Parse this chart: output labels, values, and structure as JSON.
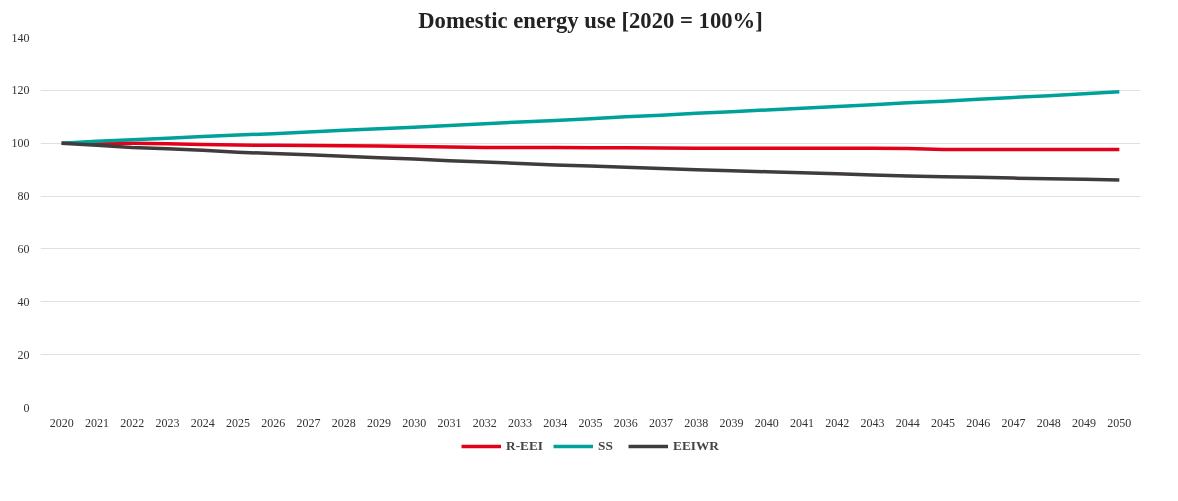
{
  "chart_data": {
    "type": "line",
    "title": "Domestic energy use [2020 = 100%]",
    "categories": [
      "2020",
      "2021",
      "2022",
      "2023",
      "2024",
      "2025",
      "2026",
      "2027",
      "2028",
      "2029",
      "2030",
      "2031",
      "2032",
      "2033",
      "2034",
      "2035",
      "2036",
      "2037",
      "2038",
      "2039",
      "2040",
      "2041",
      "2042",
      "2043",
      "2044",
      "2045",
      "2046",
      "2047",
      "2048",
      "2049",
      "2050"
    ],
    "series": [
      {
        "name": "R-EEI",
        "color": "#e3001b",
        "values": [
          100,
          100,
          100,
          99.8,
          99.5,
          99.3,
          99.2,
          99.1,
          99,
          98.9,
          98.8,
          98.6,
          98.4,
          98.4,
          98.4,
          98.3,
          98.3,
          98.2,
          98.1,
          98.1,
          98.1,
          98.1,
          98.1,
          98.1,
          98,
          97.6,
          97.6,
          97.6,
          97.6,
          97.6,
          97.6
        ]
      },
      {
        "name": "SS",
        "color": "#00a19a",
        "values": [
          100,
          100.7,
          101.3,
          101.9,
          102.5,
          103.1,
          103.6,
          104.2,
          104.9,
          105.5,
          106,
          106.7,
          107.4,
          108,
          108.6,
          109.3,
          110,
          110.6,
          111.3,
          111.9,
          112.6,
          113.2,
          113.9,
          114.6,
          115.3,
          115.9,
          116.6,
          117.3,
          118,
          118.7,
          119.5
        ]
      },
      {
        "name": "EEIWR",
        "color": "#403c3c",
        "values": [
          100,
          99.2,
          98.4,
          97.9,
          97.3,
          96.6,
          96.1,
          95.6,
          95.1,
          94.5,
          94,
          93.4,
          92.9,
          92.3,
          91.8,
          91.4,
          90.9,
          90.4,
          90,
          89.6,
          89.2,
          88.8,
          88.4,
          88,
          87.6,
          87.3,
          87.1,
          86.8,
          86.6,
          86.4,
          86.1
        ]
      }
    ],
    "ylim": [
      0,
      140
    ],
    "yticks": [
      0,
      20,
      40,
      60,
      80,
      100,
      120,
      140
    ],
    "grid": "y",
    "legend": "bottom",
    "marker": "none",
    "line_style": "solid"
  }
}
